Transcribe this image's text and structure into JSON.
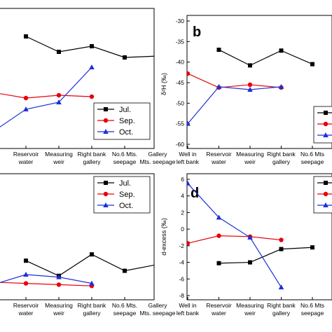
{
  "chart_data": [
    {
      "panel": "a",
      "type": "line",
      "letter": "",
      "ylabel": "",
      "categories": [
        "",
        "Reservoir water",
        "Measuring weir",
        "Right bank gallery",
        "No.6 Mts. seepage",
        "Gallery Mts. seepage"
      ],
      "category_labels": [
        [
          "",
          ""
        ],
        [
          "Reservoir",
          "water"
        ],
        [
          "Measuring",
          "weir"
        ],
        [
          "Right bank",
          "gallery"
        ],
        [
          "No.6 Mts.",
          "seepage"
        ],
        [
          "Gallery",
          "Mts. seepage"
        ]
      ],
      "yticks": [],
      "legend": [
        "Jul.",
        "Sep.",
        "Oct."
      ],
      "series": [
        {
          "name": "Jul.",
          "color": "#000000",
          "marker": "square",
          "x": [
            1,
            2,
            3,
            4,
            5
          ],
          "values": [
            0.2,
            0.31,
            0.27,
            0.35,
            0.34
          ]
        },
        {
          "name": "Sep.",
          "color": "#e8000b",
          "marker": "circle",
          "x": [
            0,
            1,
            2,
            3
          ],
          "values": [
            0.6,
            0.64,
            0.62,
            0.63
          ]
        },
        {
          "name": "Oct.",
          "color": "#1f2fd6",
          "marker": "triangle",
          "x": [
            0,
            1,
            2,
            3
          ],
          "values": [
            0.88,
            0.72,
            0.67,
            0.42
          ]
        }
      ]
    },
    {
      "panel": "b",
      "type": "line",
      "letter": "b",
      "ylabel": "δ²H (‰)",
      "categories": [
        "Well in left bank",
        "Reservoir water",
        "Measuring weir",
        "Right bank gallery",
        "No.6 Mts. seepage"
      ],
      "category_labels": [
        [
          "Well in",
          "left bank"
        ],
        [
          "Reservoir",
          "water"
        ],
        [
          "Measuring",
          "weir"
        ],
        [
          "Right bank",
          "gallery"
        ],
        [
          "No.6 Mts",
          "seepage"
        ]
      ],
      "ylim": [
        -60,
        -30
      ],
      "yticks": [
        "-30",
        "-35",
        "-40",
        "-45",
        "-50",
        "-55",
        "-60"
      ],
      "series": [
        {
          "name": "Jul.",
          "color": "#000000",
          "marker": "square",
          "x": [
            1,
            2,
            3,
            4
          ],
          "values": [
            -37.0,
            -40.8,
            -37.2,
            -40.5
          ]
        },
        {
          "name": "Sep.",
          "color": "#e8000b",
          "marker": "circle",
          "x": [
            0,
            1,
            2,
            3
          ],
          "values": [
            -42.8,
            -46.2,
            -45.5,
            -46.2
          ]
        },
        {
          "name": "Oct.",
          "color": "#1f2fd6",
          "marker": "triangle",
          "x": [
            0,
            1,
            2,
            3
          ],
          "values": [
            -55.0,
            -46.0,
            -46.7,
            -46.0
          ]
        }
      ]
    },
    {
      "panel": "c",
      "type": "line",
      "letter": "",
      "ylabel": "",
      "categories": [
        "",
        "Reservoir water",
        "Measuring weir",
        "Right bank gallery",
        "No.6 Mts. seepage",
        "Gallery Mts. seepage"
      ],
      "category_labels": [
        [
          "",
          ""
        ],
        [
          "Reservoir",
          "water"
        ],
        [
          "Measuring",
          "weir"
        ],
        [
          "Right bank",
          "gallery"
        ],
        [
          "No.6 Mts.",
          "seepage"
        ],
        [
          "Gallery",
          "Mts. seepage"
        ]
      ],
      "yticks": [],
      "legend": [
        "Jul.",
        "Sep.",
        "Oct."
      ],
      "series": [
        {
          "name": "Jul.",
          "color": "#000000",
          "marker": "square",
          "x": [
            1,
            2,
            3,
            4,
            5
          ],
          "values": [
            0.69,
            0.81,
            0.64,
            0.77,
            0.72
          ]
        },
        {
          "name": "Sep.",
          "color": "#e8000b",
          "marker": "circle",
          "x": [
            0,
            1,
            2,
            3
          ],
          "values": [
            0.86,
            0.87,
            0.88,
            0.89
          ]
        },
        {
          "name": "Oct.",
          "color": "#1f2fd6",
          "marker": "triangle",
          "x": [
            0,
            1,
            2,
            3
          ],
          "values": [
            0.88,
            0.8,
            0.82,
            0.87
          ]
        }
      ]
    },
    {
      "panel": "d",
      "type": "line",
      "letter": "d",
      "ylabel": "d-excess (‰)",
      "categories": [
        "Well in left bank",
        "Reservoir water",
        "Measuring weir",
        "Right bank gallery",
        "No.6 Mts. seepage"
      ],
      "category_labels": [
        [
          "Well in",
          "left bank"
        ],
        [
          "Reservoir",
          "water"
        ],
        [
          "Measuring",
          "weir"
        ],
        [
          "Right bank",
          "gallery"
        ],
        [
          "No.6 Mts",
          "seepage"
        ]
      ],
      "ylim": [
        -8,
        6
      ],
      "yticks": [
        "6",
        "4",
        "2",
        "0",
        "-2",
        "-4",
        "-6",
        "-8"
      ],
      "series": [
        {
          "name": "Jul.",
          "color": "#000000",
          "marker": "square",
          "x": [
            1,
            2,
            3,
            4
          ],
          "values": [
            -4.1,
            -4.0,
            -2.4,
            -2.2
          ]
        },
        {
          "name": "Sep.",
          "color": "#e8000b",
          "marker": "circle",
          "x": [
            0,
            1,
            2,
            3
          ],
          "values": [
            -1.7,
            -0.8,
            -0.9,
            -1.3
          ]
        },
        {
          "name": "Oct.",
          "color": "#1f2fd6",
          "marker": "triangle",
          "x": [
            0,
            1,
            2,
            3
          ],
          "values": [
            5.5,
            1.4,
            -1.0,
            -7.0
          ]
        }
      ]
    }
  ]
}
